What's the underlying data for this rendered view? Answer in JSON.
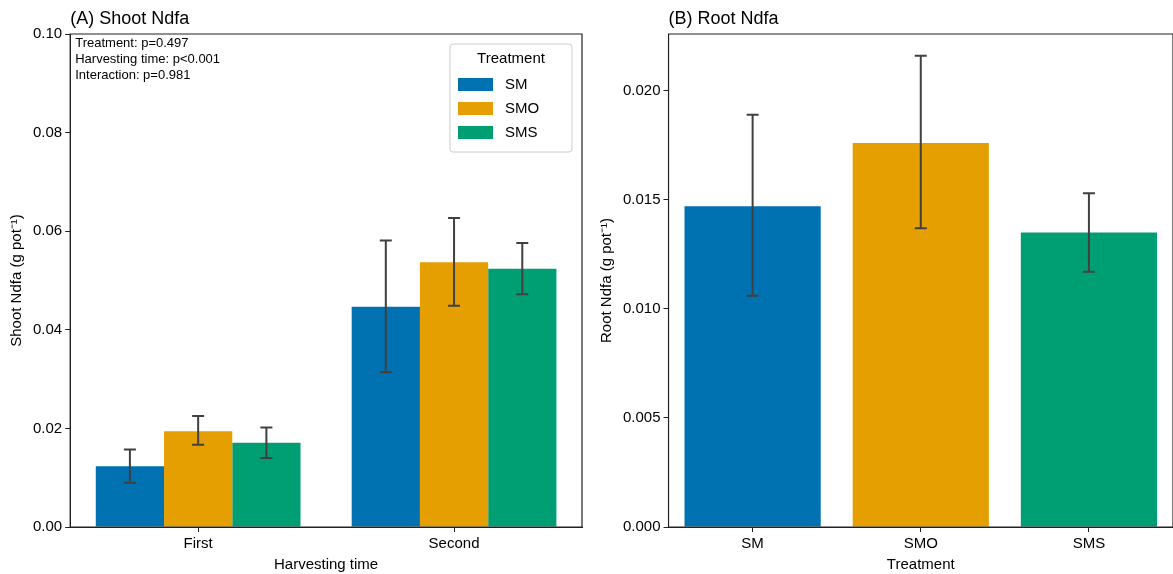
{
  "chart_data": [
    {
      "type": "bar",
      "title": "(A) Shoot Ndfa",
      "xlabel": "Harvesting time",
      "ylabel": "Shoot Ndfa (g pot⁻¹)",
      "legend_title": "Treatment",
      "legend": "top right",
      "annotations": [
        "Treatment: p=0.497",
        "Harvesting time: p<0.001",
        "Interaction: p=0.981"
      ],
      "categories": [
        "First",
        "Second"
      ],
      "series": [
        {
          "name": "SM",
          "color": "#0072b2",
          "values": [
            0.0123,
            0.0447
          ],
          "errors": [
            [
              0.009,
              0.0157
            ],
            [
              0.0314,
              0.0581
            ]
          ]
        },
        {
          "name": "SMO",
          "color": "#e69f00",
          "values": [
            0.0194,
            0.0537
          ],
          "errors": [
            [
              0.0167,
              0.0225
            ],
            [
              0.0449,
              0.0627
            ]
          ]
        },
        {
          "name": "SMS",
          "color": "#009e73",
          "values": [
            0.0171,
            0.0524
          ],
          "errors": [
            [
              0.014,
              0.0202
            ],
            [
              0.0472,
              0.0576
            ]
          ]
        }
      ],
      "ylim": [
        0,
        0.1
      ],
      "yticks": [
        {
          "value": 0,
          "label": "0.00"
        },
        0.02,
        0.04,
        0.06,
        0.08,
        {
          "value": 0.1,
          "label": "0.10"
        }
      ]
    },
    {
      "type": "bar",
      "title": "(B) Root Ndfa",
      "xlabel": "Treatment",
      "ylabel": "Root Ndfa (g pot⁻¹)",
      "categories": [
        "SM",
        "SMO",
        "SMS"
      ],
      "values": [
        0.0147,
        0.0176,
        0.0135
      ],
      "colors": [
        "#0072b2",
        "#e69f00",
        "#009e73"
      ],
      "errors": [
        [
          0.0106,
          0.0189
        ],
        [
          0.0137,
          0.0216
        ],
        [
          0.0117,
          0.0153
        ]
      ],
      "ylim": [
        0,
        0.0226
      ],
      "yticks": [
        {
          "value": 0,
          "label": "0.000"
        },
        {
          "value": 0.005,
          "label": "0.005"
        },
        {
          "value": 0.01,
          "label": "0.010"
        },
        {
          "value": 0.015,
          "label": "0.015"
        },
        {
          "value": 0.02,
          "label": "0.020"
        }
      ]
    }
  ]
}
